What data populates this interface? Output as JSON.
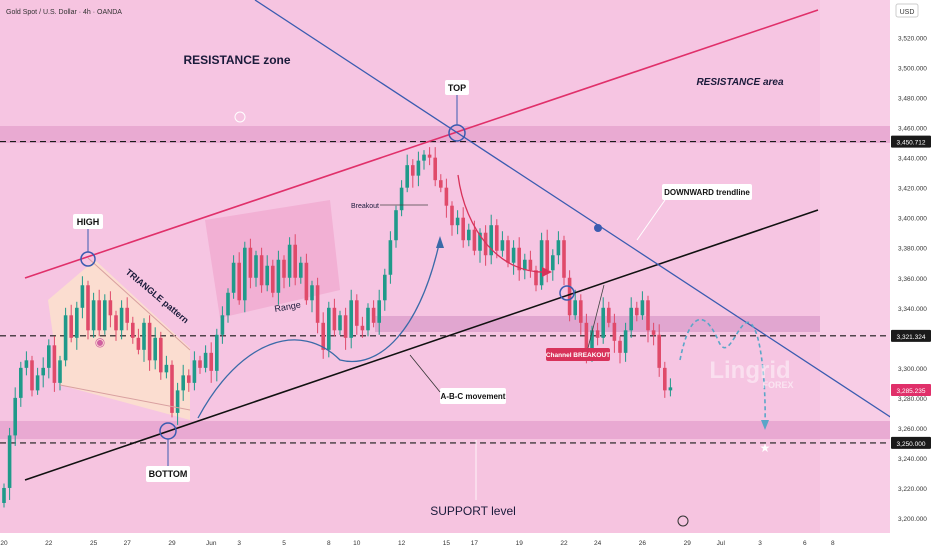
{
  "header": {
    "symbol": "Gold Spot / U.S. Dollar · 4h · OANDA"
  },
  "chart_data": {
    "type": "candlestick",
    "currency": "USD",
    "ylim": [
      3190,
      3545
    ],
    "y_ticks": [
      3200,
      3220,
      3240,
      3260,
      3280,
      3300,
      3320,
      3340,
      3360,
      3380,
      3400,
      3420,
      3440,
      3460,
      3480,
      3500,
      3520
    ],
    "y_tick_labels": [
      "3,200.000",
      "3,220.000",
      "3,240.000",
      "3,260.000",
      "3,280.000",
      "3,300.000",
      "3,320.000",
      "3,340.000",
      "3,360.000",
      "3,380.000",
      "3,400.000",
      "3,420.000",
      "3,440.000",
      "3,460.000",
      "3,480.000",
      "3,500.000",
      "3,520.000"
    ],
    "x_ticks": [
      {
        "label": "20",
        "index": 0
      },
      {
        "label": "22",
        "index": 8
      },
      {
        "label": "25",
        "index": 16
      },
      {
        "label": "27",
        "index": 22
      },
      {
        "label": "29",
        "index": 30
      },
      {
        "label": "Jun",
        "index": 37
      },
      {
        "label": "3",
        "index": 42
      },
      {
        "label": "5",
        "index": 50
      },
      {
        "label": "8",
        "index": 58
      },
      {
        "label": "10",
        "index": 63
      },
      {
        "label": "12",
        "index": 71
      },
      {
        "label": "15",
        "index": 79
      },
      {
        "label": "17",
        "index": 84
      },
      {
        "label": "19",
        "index": 92
      },
      {
        "label": "22",
        "index": 100
      },
      {
        "label": "24",
        "index": 106
      },
      {
        "label": "26",
        "index": 114
      },
      {
        "label": "29",
        "index": 122
      },
      {
        "label": "Jul",
        "index": 128
      },
      {
        "label": "3",
        "index": 135
      },
      {
        "label": "6",
        "index": 143
      },
      {
        "label": "8",
        "index": 148
      }
    ],
    "price_tags": [
      {
        "value": 3450.712,
        "label": "3,450.712",
        "style": "dark"
      },
      {
        "value": 3321.324,
        "label": "3,321.324",
        "style": "dark"
      },
      {
        "value": 3285.235,
        "label": "3,285.235",
        "style": "red"
      },
      {
        "value": 3250.0,
        "label": "3,250.000",
        "style": "dark"
      }
    ],
    "closes": [
      3220,
      3255,
      3280,
      3300,
      3305,
      3285,
      3295,
      3300,
      3315,
      3290,
      3305,
      3335,
      3320,
      3340,
      3355,
      3325,
      3345,
      3325,
      3345,
      3335,
      3325,
      3340,
      3330,
      3320,
      3312,
      3330,
      3305,
      3320,
      3297,
      3302,
      3270,
      3285,
      3295,
      3290,
      3305,
      3300,
      3310,
      3298,
      3322,
      3335,
      3350,
      3370,
      3345,
      3380,
      3360,
      3375,
      3355,
      3368,
      3350,
      3372,
      3360,
      3382,
      3360,
      3370,
      3345,
      3355,
      3330,
      3312,
      3340,
      3325,
      3335,
      3320,
      3345,
      3328,
      3325,
      3340,
      3330,
      3345,
      3362,
      3385,
      3405,
      3420,
      3435,
      3428,
      3438,
      3442,
      3440,
      3425,
      3420,
      3408,
      3395,
      3400,
      3385,
      3392,
      3378,
      3390,
      3375,
      3395,
      3378,
      3385,
      3370,
      3380,
      3365,
      3372,
      3365,
      3355,
      3385,
      3365,
      3375,
      3385,
      3360,
      3335,
      3345,
      3330,
      3310,
      3325,
      3320,
      3340,
      3330,
      3318,
      3310,
      3325,
      3340,
      3335,
      3345,
      3325,
      3322,
      3300,
      3285,
      3287
    ],
    "horizontal_levels": [
      {
        "name": "resistance",
        "value": 3450.712
      },
      {
        "name": "mid",
        "value": 3321.324
      },
      {
        "name": "support",
        "value": 3250.0
      }
    ],
    "annotations": [
      "RESISTANCE zone",
      "RESISTANCE area",
      "TOP",
      "HIGH",
      "TRIANGLE pattern",
      "Breakout",
      "Range",
      "DOWNWARD trendline",
      "Channel BREAKOUT",
      "A-B-C movement",
      "BOTTOM",
      "SUPPORT level"
    ]
  },
  "labels": {
    "resistance_zone": "RESISTANCE zone",
    "resistance_area": "RESISTANCE area",
    "top": "TOP",
    "high": "HIGH",
    "triangle": "TRIANGLE pattern",
    "breakout": "Breakout",
    "range": "Range",
    "downward": "DOWNWARD trendline",
    "channel_breakout": "Channel BREAKOUT",
    "abc": "A-B-C movement",
    "bottom": "BOTTOM",
    "support": "SUPPORT level"
  },
  "watermark": {
    "name": "Lingrid",
    "sub": "FOREX"
  },
  "colors": {
    "green": "#1f9a8a",
    "red": "#e04a6a",
    "channel_top": "#e0306a",
    "channel_bottom": "#111111",
    "trendline": "#3a5bb0",
    "zone": "#d9a6cf"
  }
}
